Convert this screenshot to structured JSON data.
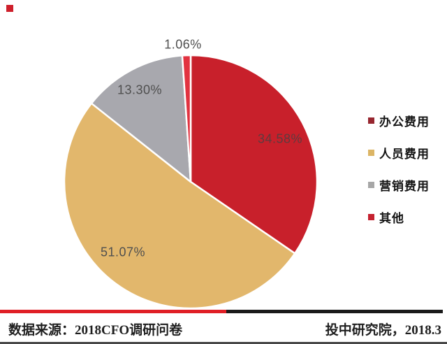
{
  "chart_data": {
    "type": "pie",
    "categories": [
      "办公费用",
      "人员费用",
      "营销费用",
      "其他"
    ],
    "values": [
      34.58,
      51.07,
      13.3,
      1.06
    ],
    "labels": [
      "34.58%",
      "51.07%",
      "13.30%",
      "1.06%"
    ],
    "slice_colors": [
      "#C8202B",
      "#E2B76C",
      "#A8A8AE",
      "#E23240"
    ],
    "label_colors": [
      "#5E3B3F",
      "#4F4F4F",
      "#4F4F4F",
      "#4F4F4F"
    ],
    "legend_marker_colors": [
      "#97262F",
      "#DCB565",
      "#A7A7A7",
      "#C52230"
    ],
    "legend_position": "right",
    "start_angle": "top",
    "direction": "clockwise",
    "title": "",
    "total": 100
  },
  "footer": {
    "source": "数据来源：2018CFO调研问卷",
    "credit": "投中研究院，2018.3"
  },
  "style": {
    "divider_red": "#E01F26",
    "divider_black": "#1B1B1B",
    "corner_marker_red": "#CE1F2B",
    "bottom_line_gray": "#474747",
    "slice_border": "#FFFFFF"
  }
}
